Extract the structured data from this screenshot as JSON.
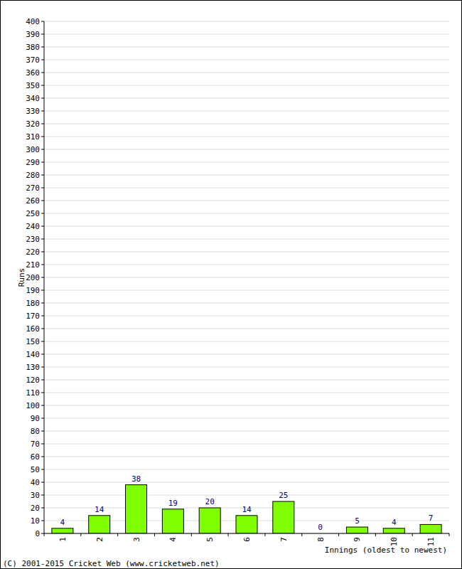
{
  "chart_data": {
    "type": "bar",
    "categories": [
      "1",
      "2",
      "3",
      "4",
      "5",
      "6",
      "7",
      "8",
      "9",
      "10",
      "11"
    ],
    "values": [
      4,
      14,
      38,
      19,
      20,
      14,
      25,
      0,
      5,
      4,
      7
    ],
    "color": "#80ff00",
    "x_label": "Innings (oldest to newest)",
    "y_label": "Runs",
    "annotations": [
      "(C) 2001-2015 Cricket Web (www.cricketweb.net)"
    ],
    "ylim": [
      0,
      400
    ],
    "yticks": [
      0,
      10,
      20,
      30,
      40,
      50,
      60,
      70,
      80,
      90,
      100,
      110,
      120,
      130,
      140,
      150,
      160,
      170,
      180,
      190,
      200,
      210,
      220,
      230,
      240,
      250,
      260,
      270,
      280,
      290,
      300,
      310,
      320,
      330,
      340,
      350,
      360,
      370,
      380,
      390,
      400
    ],
    "grid": true,
    "data_labels": true
  }
}
